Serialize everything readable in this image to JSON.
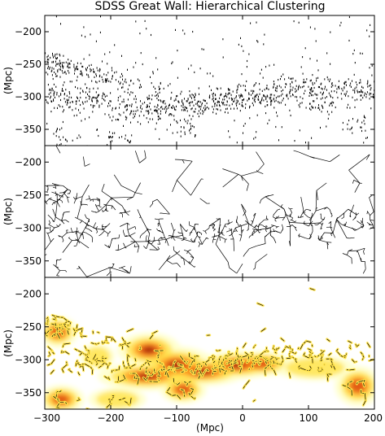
{
  "figure": {
    "title": "SDSS Great Wall: Hierarchical Clustering",
    "xlabel": "(Mpc)",
    "ylabel": "(Mpc)"
  },
  "chart_data": [
    {
      "type": "scatter",
      "panel": "top",
      "description_of_marks": "galaxy points",
      "xlim": [
        -300,
        200
      ],
      "ylim": [
        -375,
        -175
      ],
      "ylabel": "(Mpc)",
      "yticks": [
        -200,
        -250,
        -300,
        -350
      ],
      "ytick_labels": [
        "−200",
        "−250",
        "−300",
        "−350"
      ],
      "grid": false
    },
    {
      "type": "line",
      "panel": "middle",
      "description_of_marks": "minimum spanning tree edges",
      "xlim": [
        -300,
        200
      ],
      "ylim": [
        -375,
        -175
      ],
      "ylabel": "(Mpc)",
      "yticks": [
        -200,
        -250,
        -300,
        -350
      ],
      "ytick_labels": [
        "−200",
        "−250",
        "−300",
        "−350"
      ],
      "grid": false
    },
    {
      "type": "heatmap",
      "panel": "bottom",
      "description_of_marks": "clusters with density shading",
      "xlim": [
        -300,
        200
      ],
      "ylim": [
        -375,
        -175
      ],
      "xlabel": "(Mpc)",
      "ylabel": "(Mpc)",
      "xticks": [
        -300,
        -200,
        -100,
        0,
        100,
        200
      ],
      "xtick_labels": [
        "−300",
        "−200",
        "−100",
        "0",
        "100",
        "200"
      ],
      "yticks": [
        -200,
        -250,
        -300,
        -350
      ],
      "ytick_labels": [
        "−200",
        "−250",
        "−300",
        "−350"
      ],
      "colormap": [
        "#ffffcc",
        "#ffe24a",
        "#ff9a1a",
        "#d63a0a",
        "#7a0a00"
      ],
      "density_blobs": [
        {
          "x": -280,
          "y": -258,
          "amp": 0.55,
          "sx": 14,
          "sy": 11
        },
        {
          "x": -142,
          "y": -285,
          "amp": 0.6,
          "sx": 22,
          "sy": 12
        },
        {
          "x": -100,
          "y": -308,
          "amp": 0.75,
          "sx": 26,
          "sy": 13
        },
        {
          "x": -60,
          "y": -318,
          "amp": 0.65,
          "sx": 30,
          "sy": 10
        },
        {
          "x": -8,
          "y": -308,
          "amp": 1.0,
          "sx": 28,
          "sy": 10
        },
        {
          "x": 28,
          "y": -306,
          "amp": 0.55,
          "sx": 22,
          "sy": 9
        },
        {
          "x": -145,
          "y": -325,
          "amp": 0.6,
          "sx": 34,
          "sy": 10
        },
        {
          "x": -90,
          "y": -345,
          "amp": 0.55,
          "sx": 16,
          "sy": 10
        },
        {
          "x": -275,
          "y": -360,
          "amp": 0.5,
          "sx": 16,
          "sy": 10
        },
        {
          "x": 175,
          "y": -340,
          "amp": 0.55,
          "sx": 16,
          "sy": 14
        },
        {
          "x": -220,
          "y": -295,
          "amp": 0.35,
          "sx": 12,
          "sy": 9
        },
        {
          "x": 110,
          "y": -312,
          "amp": 0.3,
          "sx": 28,
          "sy": 9
        },
        {
          "x": -190,
          "y": -360,
          "amp": 0.35,
          "sx": 20,
          "sy": 8
        }
      ]
    }
  ]
}
